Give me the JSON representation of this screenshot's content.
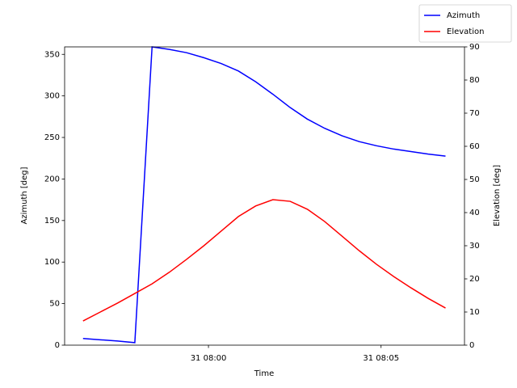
{
  "chart_data": {
    "type": "line",
    "x_label": "Time",
    "y_label": "Azimuth [deg]",
    "y2_label": "Elevation [deg]",
    "x": [
      "31 07:56:22",
      "31 07:56:52",
      "31 07:57:22",
      "31 07:57:52",
      "31 07:58:22",
      "31 07:58:52",
      "31 07:59:22",
      "31 07:59:52",
      "31 08:00:22",
      "31 08:00:52",
      "31 08:01:22",
      "31 08:01:52",
      "31 08:02:22",
      "31 08:02:52",
      "31 08:03:22",
      "31 08:03:52",
      "31 08:04:22",
      "31 08:04:52",
      "31 08:05:22",
      "31 08:05:52",
      "31 08:06:22",
      "31 08:06:52"
    ],
    "xlim": [
      "31 07:55:50",
      "31 08:07:25"
    ],
    "xticks": [
      "31 08:00",
      "31 08:05"
    ],
    "ylim": [
      0,
      359
    ],
    "yticks": [
      0,
      50,
      100,
      150,
      200,
      250,
      300,
      350
    ],
    "y2lim": [
      0,
      90
    ],
    "y2ticks": [
      0,
      10,
      20,
      30,
      40,
      50,
      60,
      70,
      80,
      90
    ],
    "legend": "upper right",
    "series": [
      {
        "name": "Azimuth",
        "color": "#0000ff",
        "values": [
          8,
          6.5,
          5,
          3,
          359,
          356,
          352,
          346,
          339,
          330,
          317,
          302,
          286,
          272,
          261,
          252,
          245,
          240,
          236,
          233,
          230,
          227.5
        ]
      },
      {
        "name": "Elevation",
        "color": "#ff0000",
        "axis": "y2",
        "values": [
          7.3,
          10,
          12.7,
          15.6,
          18.5,
          22,
          25.9,
          30,
          34.4,
          38.8,
          42,
          43.9,
          43.4,
          41,
          37.3,
          32.9,
          28.5,
          24.4,
          20.7,
          17.3,
          14.1,
          11.2
        ]
      }
    ]
  }
}
